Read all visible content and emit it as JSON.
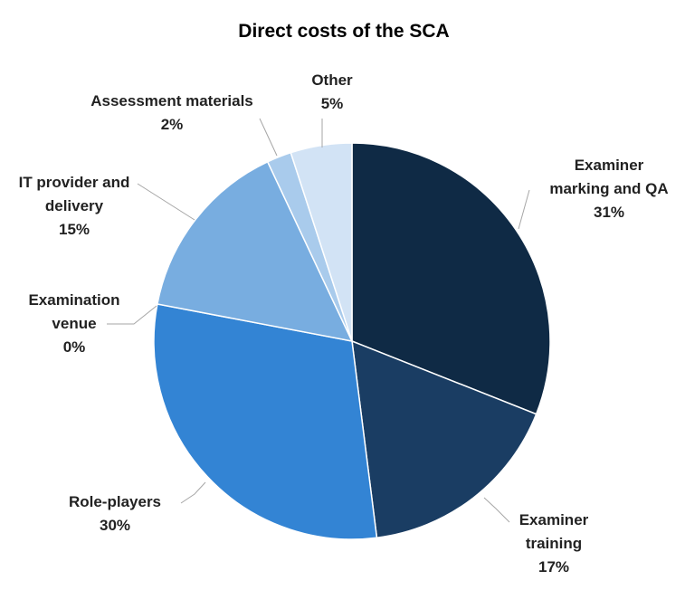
{
  "chart_data": {
    "type": "pie",
    "title": "Direct costs of the SCA",
    "slices": [
      {
        "label": "Examiner marking and QA",
        "display_label": [
          "Examiner",
          "marking and QA",
          "31%"
        ],
        "value": 31,
        "color": "#0f2a45"
      },
      {
        "label": "Examiner training",
        "display_label": [
          "Examiner",
          "training",
          "17%"
        ],
        "value": 17,
        "color": "#1a3d63"
      },
      {
        "label": "Role-players",
        "display_label": [
          "Role-players",
          "30%"
        ],
        "value": 30,
        "color": "#3384d4"
      },
      {
        "label": "Examination venue",
        "display_label": [
          "Examination",
          "venue",
          "0%"
        ],
        "value": 0,
        "color": "#5a9ad8"
      },
      {
        "label": "IT provider and delivery",
        "display_label": [
          "IT provider and",
          "delivery",
          "15%"
        ],
        "value": 15,
        "color": "#78ade0"
      },
      {
        "label": "Assessment materials",
        "display_label": [
          "Assessment materials",
          "2%"
        ],
        "value": 2,
        "color": "#a9cbec"
      },
      {
        "label": "Other",
        "display_label": [
          "Other",
          "5%"
        ],
        "value": 5,
        "color": "#d2e3f5"
      }
    ],
    "legend": "none",
    "data_labels": "outside-with-leaders"
  }
}
